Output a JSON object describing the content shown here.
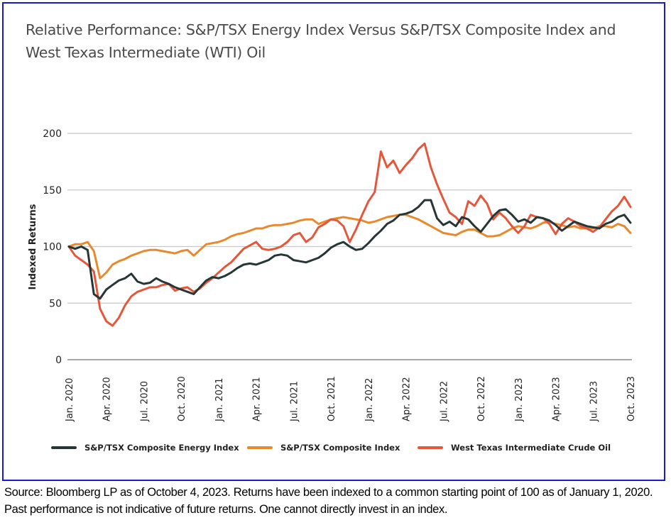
{
  "chart_data": {
    "type": "line",
    "title": "Relative Performance: S&P/TSX Energy Index Versus S&P/TSX Composite Index and West Texas Intermediate (WTI) Oil",
    "xlabel": "",
    "ylabel": "Indexed Returns",
    "ylim": [
      0,
      200
    ],
    "yticks": [
      "0",
      "50",
      "100",
      "150",
      "200"
    ],
    "ytick_values": [
      0,
      50,
      100,
      150,
      200
    ],
    "grid": "horizontal",
    "legend_position": "bottom",
    "x_unit": "months since Jan. 2020",
    "xlim": [
      0,
      45
    ],
    "xticks": [
      {
        "t": 0,
        "label": "Jan. 2020"
      },
      {
        "t": 3,
        "label": "Apr. 2020"
      },
      {
        "t": 6,
        "label": "Jul. 2020"
      },
      {
        "t": 9,
        "label": "Oct. 2020"
      },
      {
        "t": 12,
        "label": "Jan. 2021"
      },
      {
        "t": 15,
        "label": "Apr. 2021"
      },
      {
        "t": 18,
        "label": "Jul. 2021"
      },
      {
        "t": 21,
        "label": "Oct. 2021"
      },
      {
        "t": 24,
        "label": "Jan. 2022"
      },
      {
        "t": 27,
        "label": "Apr. 2022"
      },
      {
        "t": 30,
        "label": "Jul. 2022"
      },
      {
        "t": 33,
        "label": "Oct. 2022"
      },
      {
        "t": 36,
        "label": "Jan. 2023"
      },
      {
        "t": 39,
        "label": "Apr. 2023"
      },
      {
        "t": 42,
        "label": "Jul. 2023"
      },
      {
        "t": 45,
        "label": "Oct. 2023"
      }
    ],
    "x": [
      0,
      0.5,
      1,
      1.5,
      2,
      2.5,
      3,
      3.5,
      4,
      4.5,
      5,
      5.5,
      6,
      6.5,
      7,
      7.5,
      8,
      8.5,
      9,
      9.5,
      10,
      10.5,
      11,
      11.5,
      12,
      12.5,
      13,
      13.5,
      14,
      14.5,
      15,
      15.5,
      16,
      16.5,
      17,
      17.5,
      18,
      18.5,
      19,
      19.5,
      20,
      20.5,
      21,
      21.5,
      22,
      22.5,
      23,
      23.5,
      24,
      24.5,
      25,
      25.5,
      26,
      26.5,
      27,
      27.5,
      28,
      28.5,
      29,
      29.5,
      30,
      30.5,
      31,
      31.5,
      32,
      32.5,
      33,
      33.5,
      34,
      34.5,
      35,
      35.5,
      36,
      36.5,
      37,
      37.5,
      38,
      38.5,
      39,
      39.5,
      40,
      40.5,
      41,
      41.5,
      42,
      42.5,
      43,
      43.5,
      44,
      44.5,
      45
    ],
    "series": [
      {
        "name": "S&P/TSX Composite Energy Index",
        "color": "#263636",
        "values": [
          100,
          98,
          100,
          97,
          58,
          54,
          62,
          66,
          70,
          72,
          76,
          69,
          67,
          68,
          72,
          69,
          67,
          64,
          62,
          60,
          58,
          64,
          70,
          73,
          72,
          74,
          77,
          81,
          84,
          85,
          84,
          86,
          88,
          92,
          93,
          92,
          88,
          87,
          86,
          88,
          90,
          94,
          99,
          102,
          104,
          100,
          97,
          98,
          103,
          109,
          114,
          120,
          123,
          128,
          129,
          131,
          135,
          141,
          141,
          125,
          119,
          122,
          118,
          126,
          124,
          118,
          113,
          120,
          127,
          132,
          133,
          128,
          122,
          124,
          121,
          126,
          125,
          123,
          119,
          114,
          118,
          122,
          120,
          118,
          117,
          116,
          120,
          122,
          126,
          128,
          121
        ]
      },
      {
        "name": "S&P/TSX Composite Index",
        "color": "#E8892E",
        "values": [
          100,
          102,
          102,
          104,
          96,
          72,
          77,
          84,
          87,
          89,
          92,
          94,
          96,
          97,
          97,
          96,
          95,
          94,
          96,
          97,
          92,
          97,
          102,
          103,
          104,
          106,
          109,
          111,
          112,
          114,
          116,
          116,
          118,
          119,
          119,
          120,
          121,
          123,
          124,
          124,
          120,
          122,
          124,
          125,
          126,
          125,
          124,
          123,
          121,
          122,
          124,
          126,
          127,
          128,
          128,
          126,
          124,
          121,
          118,
          115,
          112,
          111,
          110,
          113,
          115,
          115,
          112,
          109,
          109,
          110,
          113,
          116,
          118,
          117,
          116,
          118,
          121,
          122,
          120,
          119,
          117,
          118,
          116,
          116,
          116,
          118,
          118,
          117,
          120,
          118,
          112
        ]
      },
      {
        "name": "West Texas Intermediate Crude Oil",
        "color": "#E4573B",
        "values": [
          100,
          92,
          88,
          84,
          78,
          45,
          34,
          30,
          37,
          48,
          56,
          60,
          62,
          64,
          64,
          66,
          67,
          61,
          63,
          64,
          60,
          63,
          68,
          72,
          77,
          82,
          86,
          92,
          98,
          101,
          104,
          98,
          97,
          98,
          100,
          104,
          110,
          112,
          104,
          108,
          117,
          120,
          124,
          123,
          118,
          104,
          115,
          128,
          140,
          148,
          184,
          170,
          176,
          165,
          172,
          178,
          186,
          191,
          170,
          155,
          142,
          130,
          126,
          120,
          140,
          136,
          145,
          138,
          124,
          130,
          125,
          118,
          112,
          118,
          128,
          126,
          125,
          120,
          111,
          120,
          125,
          122,
          118,
          116,
          113,
          117,
          124,
          131,
          136,
          144,
          135
        ]
      }
    ]
  },
  "title": "Relative Performance: S&P/TSX Energy Index Versus S&P/TSX Composite Index and West Texas Intermediate (WTI) Oil",
  "legend": [
    {
      "label": "S&P/TSX Composite Energy Index",
      "color": "#263636"
    },
    {
      "label": "S&P/TSX Composite Index",
      "color": "#E8892E"
    },
    {
      "label": "West Texas Intermediate Crude Oil",
      "color": "#E4573B"
    }
  ],
  "footnote": "Source: Bloomberg LP as of October 4, 2023. Returns have been indexed to a common starting point of 100 as of January 1, 2020. Past performance is not indicative of future returns. One cannot directly invest in an index.",
  "colors": {
    "frame_border": "#1a1acc",
    "gridline": "#c8c8c8",
    "title_text": "#4a4a4a"
  }
}
